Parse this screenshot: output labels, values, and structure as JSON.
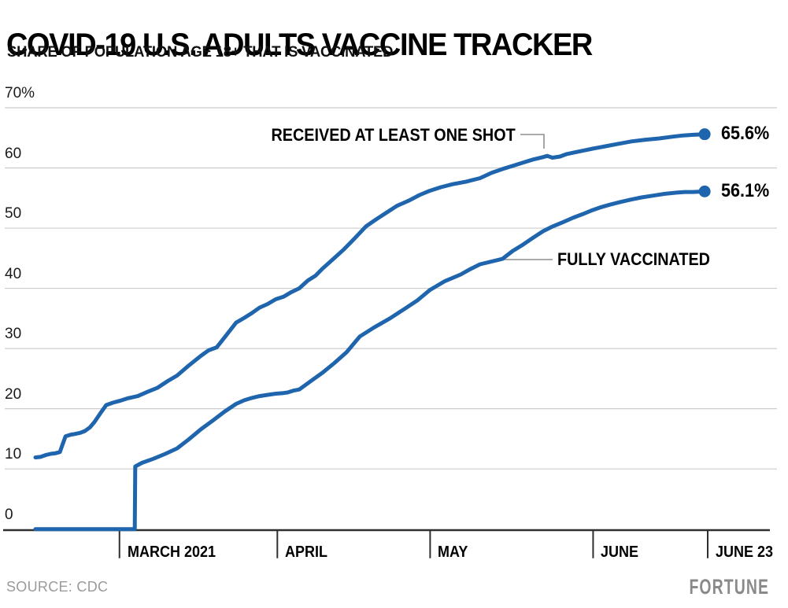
{
  "header": {
    "title": "COVID-19 U.S. ADULTS VACCINE TRACKER",
    "subtitle": "SHARE OF POPULATION AGE 18+ THAT IS VACCINATED"
  },
  "footer": {
    "source": "SOURCE: CDC",
    "brand": "FORTUNE"
  },
  "colors": {
    "line_blue": "#1f65ad",
    "grid": "#cccccc",
    "axis": "#2f2f2f",
    "leader": "#8f8f8f"
  },
  "chart_data": {
    "type": "line",
    "title": "COVID-19 U.S. ADULTS VACCINE TRACKER",
    "subtitle": "SHARE OF POPULATION AGE 18+ THAT IS VACCINATED",
    "grid": true,
    "x_axis": {
      "unit": "days from chart start (mid-February 2021)",
      "range_days": [
        0,
        132
      ],
      "ticks": [
        {
          "label": "MARCH 2021",
          "day": 16.5
        },
        {
          "label": "APRIL",
          "day": 47.5
        },
        {
          "label": "MAY",
          "day": 77.5
        },
        {
          "label": "JUNE",
          "day": 109.5
        },
        {
          "label": "JUNE 23",
          "day": 132
        }
      ]
    },
    "y_axis": {
      "range": [
        0,
        70
      ],
      "ticks": [
        {
          "label": "70%",
          "value": 70
        },
        {
          "label": "60",
          "value": 60
        },
        {
          "label": "50",
          "value": 50
        },
        {
          "label": "40",
          "value": 40
        },
        {
          "label": "30",
          "value": 30
        },
        {
          "label": "20",
          "value": 20
        },
        {
          "label": "10",
          "value": 10
        },
        {
          "label": "0",
          "value": 0
        }
      ]
    },
    "series": [
      {
        "name": "RECEIVED AT LEAST ONE SHOT",
        "end_label": "65.6%",
        "end_value": 65.6,
        "color": "#1f65ad",
        "points": [
          [
            0,
            11.9
          ],
          [
            1,
            12.0
          ],
          [
            2,
            12.3
          ],
          [
            3,
            12.5
          ],
          [
            3.9,
            12.6
          ],
          [
            4.8,
            12.8
          ],
          [
            5.3,
            14.0
          ],
          [
            5.9,
            15.4
          ],
          [
            7,
            15.7
          ],
          [
            7.7,
            15.8
          ],
          [
            8.8,
            16.0
          ],
          [
            9.7,
            16.3
          ],
          [
            10.7,
            16.9
          ],
          [
            11.6,
            17.8
          ],
          [
            12.8,
            19.3
          ],
          [
            13.9,
            20.6
          ],
          [
            15.2,
            21.0
          ],
          [
            16.5,
            21.3
          ],
          [
            18,
            21.7
          ],
          [
            20.1,
            22.1
          ],
          [
            22,
            22.8
          ],
          [
            24,
            23.5
          ],
          [
            26,
            24.6
          ],
          [
            27.8,
            25.5
          ],
          [
            30,
            27.1
          ],
          [
            32.5,
            28.8
          ],
          [
            34,
            29.7
          ],
          [
            35.6,
            30.2
          ],
          [
            37.1,
            31.8
          ],
          [
            39.4,
            34.3
          ],
          [
            41,
            35.1
          ],
          [
            42.5,
            35.9
          ],
          [
            44,
            36.8
          ],
          [
            45.6,
            37.4
          ],
          [
            47.2,
            38.2
          ],
          [
            48.7,
            38.6
          ],
          [
            50.3,
            39.4
          ],
          [
            51.8,
            40.0
          ],
          [
            53.5,
            41.3
          ],
          [
            55,
            42.1
          ],
          [
            56.4,
            43.3
          ],
          [
            58.5,
            44.9
          ],
          [
            60.6,
            46.5
          ],
          [
            62.8,
            48.4
          ],
          [
            64.9,
            50.3
          ],
          [
            66.8,
            51.4
          ],
          [
            68.8,
            52.5
          ],
          [
            71,
            53.7
          ],
          [
            73.4,
            54.6
          ],
          [
            75.4,
            55.5
          ],
          [
            77.4,
            56.2
          ],
          [
            79.6,
            56.8
          ],
          [
            81.9,
            57.3
          ],
          [
            84.5,
            57.7
          ],
          [
            87.3,
            58.3
          ],
          [
            89.6,
            59.2
          ],
          [
            92,
            59.9
          ],
          [
            93.9,
            60.4
          ],
          [
            95.8,
            60.9
          ],
          [
            97.7,
            61.4
          ],
          [
            99.7,
            61.8
          ],
          [
            100.5,
            62.0
          ],
          [
            101.5,
            61.7
          ],
          [
            103,
            61.9
          ],
          [
            104.3,
            62.3
          ],
          [
            106,
            62.6
          ],
          [
            107.7,
            62.9
          ],
          [
            109.4,
            63.2
          ],
          [
            111.9,
            63.6
          ],
          [
            114.4,
            64.0
          ],
          [
            117,
            64.4
          ],
          [
            119.8,
            64.7
          ],
          [
            122.5,
            64.9
          ],
          [
            125.2,
            65.2
          ],
          [
            127.2,
            65.4
          ],
          [
            129.1,
            65.5
          ],
          [
            131.4,
            65.6
          ]
        ]
      },
      {
        "name": "FULLY VACCINATED",
        "end_label": "56.1%",
        "end_value": 56.1,
        "color": "#1f65ad",
        "points": [
          [
            0,
            0
          ],
          [
            19.3,
            0
          ],
          [
            19.5,
            0
          ],
          [
            19.6,
            10.4
          ],
          [
            20.9,
            11.0
          ],
          [
            23.2,
            11.7
          ],
          [
            25.5,
            12.5
          ],
          [
            27.8,
            13.4
          ],
          [
            30.1,
            14.9
          ],
          [
            32.5,
            16.6
          ],
          [
            34.8,
            18.0
          ],
          [
            37.1,
            19.5
          ],
          [
            39.4,
            20.8
          ],
          [
            41,
            21.4
          ],
          [
            42.5,
            21.8
          ],
          [
            44,
            22.1
          ],
          [
            45.6,
            22.3
          ],
          [
            47.2,
            22.5
          ],
          [
            48.7,
            22.6
          ],
          [
            49.5,
            22.7
          ],
          [
            50.6,
            23.0
          ],
          [
            51.8,
            23.2
          ],
          [
            54.1,
            24.6
          ],
          [
            56.4,
            26.0
          ],
          [
            58.7,
            27.6
          ],
          [
            61.1,
            29.4
          ],
          [
            63.7,
            32.0
          ],
          [
            66.5,
            33.5
          ],
          [
            69.6,
            35.0
          ],
          [
            72.7,
            36.7
          ],
          [
            75,
            38.0
          ],
          [
            77.4,
            39.7
          ],
          [
            80.4,
            41.2
          ],
          [
            83.5,
            42.3
          ],
          [
            85.4,
            43.2
          ],
          [
            87.3,
            44.0
          ],
          [
            91.7,
            44.9
          ],
          [
            93.7,
            46.2
          ],
          [
            95.8,
            47.3
          ],
          [
            97.7,
            48.4
          ],
          [
            99.7,
            49.5
          ],
          [
            101.6,
            50.3
          ],
          [
            103.6,
            51.0
          ],
          [
            105.5,
            51.7
          ],
          [
            107.4,
            52.3
          ],
          [
            109.4,
            53.0
          ],
          [
            111.1,
            53.5
          ],
          [
            112.8,
            53.9
          ],
          [
            114.7,
            54.3
          ],
          [
            116.7,
            54.7
          ],
          [
            119,
            55.1
          ],
          [
            121.3,
            55.4
          ],
          [
            123.6,
            55.7
          ],
          [
            125.9,
            55.9
          ],
          [
            127.5,
            56.0
          ],
          [
            129.1,
            56.0
          ],
          [
            131.4,
            56.1
          ]
        ]
      }
    ],
    "annotations": [
      {
        "text": "RECEIVED AT LEAST ONE SHOT",
        "series": 0
      },
      {
        "text": "FULLY VACCINATED",
        "series": 1
      }
    ],
    "legend_position": "inline-annotations"
  }
}
